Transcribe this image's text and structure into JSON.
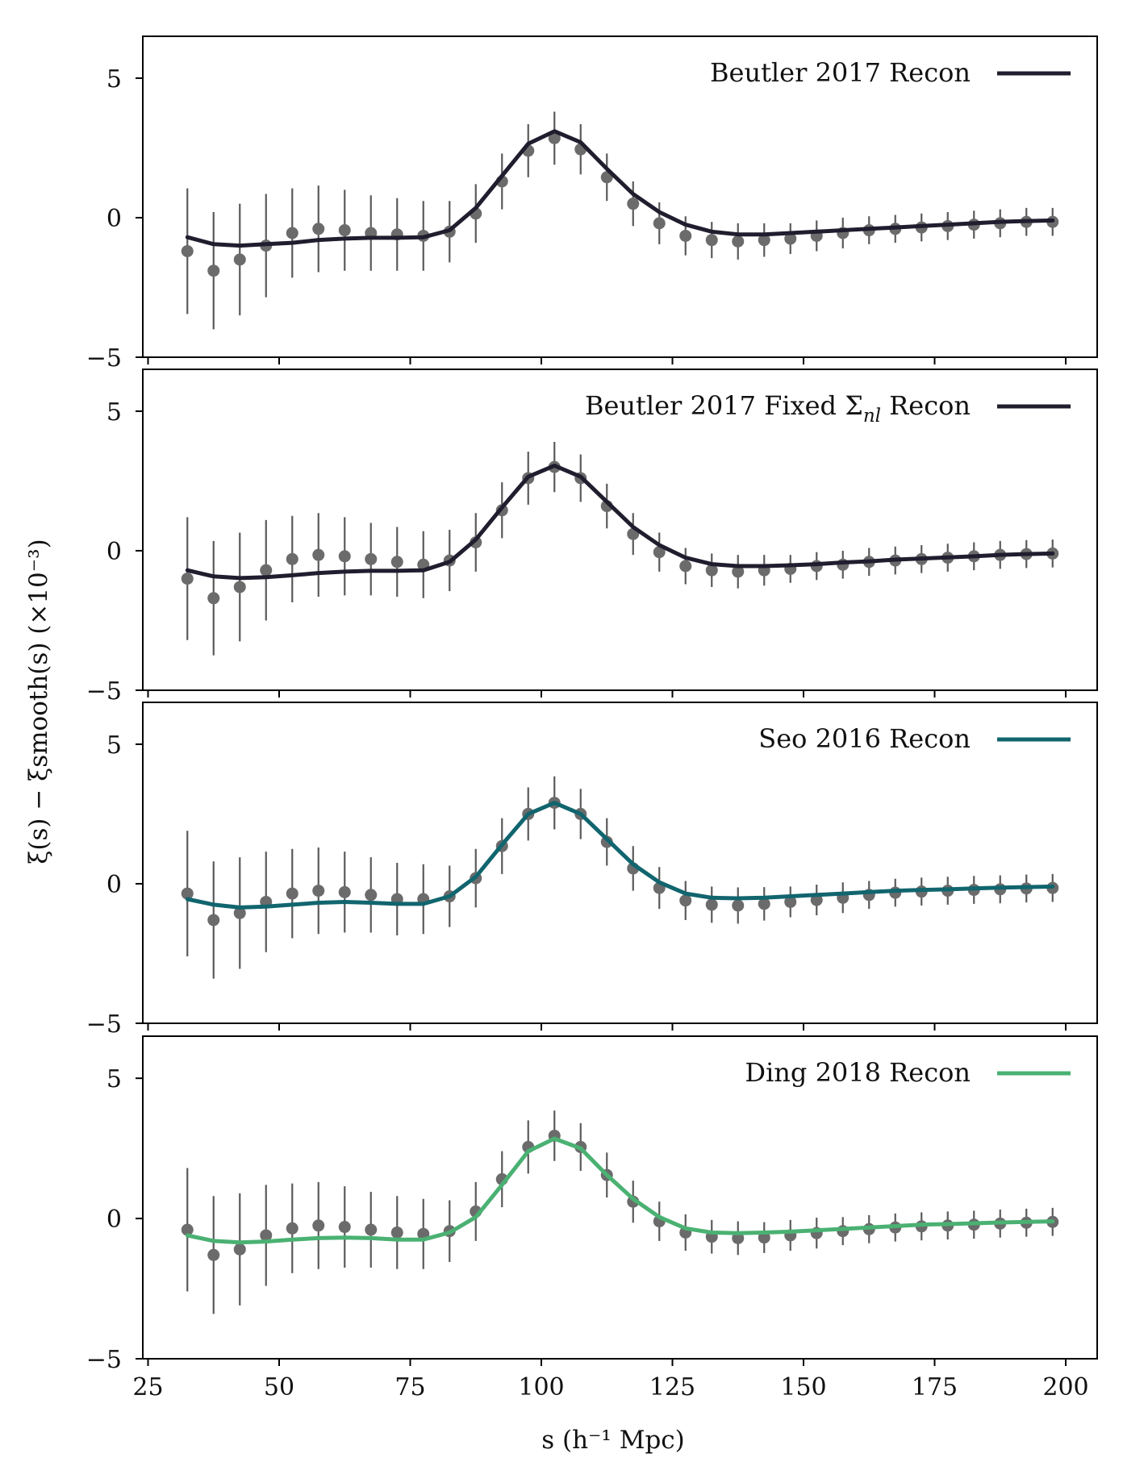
{
  "figure": {
    "ylabel": "ξ(s) − ξsmooth(s) (×10⁻³)",
    "xlabel": "s (h⁻¹ Mpc)"
  },
  "chart_data": [
    {
      "type": "line",
      "legend": "Beutler 2017 Recon",
      "line_color": "#1f1d2e",
      "x": [
        32.5,
        37.5,
        42.5,
        47.5,
        52.5,
        57.5,
        62.5,
        67.5,
        72.5,
        77.5,
        82.5,
        87.5,
        92.5,
        97.5,
        102.5,
        107.5,
        112.5,
        117.5,
        122.5,
        127.5,
        132.5,
        137.5,
        142.5,
        147.5,
        152.5,
        157.5,
        162.5,
        167.5,
        172.5,
        177.5,
        182.5,
        187.5,
        192.5,
        197.5
      ],
      "model": [
        -0.7,
        -0.95,
        -1.0,
        -0.95,
        -0.9,
        -0.8,
        -0.75,
        -0.72,
        -0.72,
        -0.7,
        -0.45,
        0.35,
        1.5,
        2.65,
        3.1,
        2.7,
        1.75,
        0.85,
        0.2,
        -0.25,
        -0.5,
        -0.6,
        -0.6,
        -0.55,
        -0.5,
        -0.45,
        -0.4,
        -0.35,
        -0.3,
        -0.25,
        -0.2,
        -0.15,
        -0.12,
        -0.1
      ],
      "data": [
        -1.2,
        -1.9,
        -1.5,
        -1.0,
        -0.55,
        -0.4,
        -0.45,
        -0.55,
        -0.6,
        -0.65,
        -0.5,
        0.15,
        1.3,
        2.4,
        2.85,
        2.45,
        1.45,
        0.5,
        -0.2,
        -0.65,
        -0.8,
        -0.85,
        -0.8,
        -0.75,
        -0.65,
        -0.55,
        -0.45,
        -0.4,
        -0.35,
        -0.3,
        -0.25,
        -0.2,
        -0.15,
        -0.15
      ],
      "err": [
        2.25,
        2.1,
        2.0,
        1.85,
        1.6,
        1.55,
        1.45,
        1.35,
        1.3,
        1.25,
        1.1,
        1.05,
        1.0,
        0.95,
        0.95,
        0.9,
        0.85,
        0.8,
        0.75,
        0.7,
        0.65,
        0.65,
        0.6,
        0.55,
        0.55,
        0.55,
        0.5,
        0.5,
        0.5,
        0.5,
        0.5,
        0.5,
        0.5,
        0.5
      ],
      "xlim": [
        24,
        206
      ],
      "ylim": [
        -5,
        6.5
      ],
      "yticks": [
        -5,
        0,
        5
      ],
      "xticks": [
        25,
        50,
        75,
        100,
        125,
        150,
        175,
        200
      ]
    },
    {
      "type": "line",
      "legend_prefix": "Beutler 2017 Fixed Σ",
      "legend_sub": "nl",
      "legend_suffix": " Recon",
      "line_color": "#1f1d2e",
      "x": [
        32.5,
        37.5,
        42.5,
        47.5,
        52.5,
        57.5,
        62.5,
        67.5,
        72.5,
        77.5,
        82.5,
        87.5,
        92.5,
        97.5,
        102.5,
        107.5,
        112.5,
        117.5,
        122.5,
        127.5,
        132.5,
        137.5,
        142.5,
        147.5,
        152.5,
        157.5,
        162.5,
        167.5,
        172.5,
        177.5,
        182.5,
        187.5,
        192.5,
        197.5
      ],
      "model": [
        -0.7,
        -0.92,
        -0.98,
        -0.95,
        -0.88,
        -0.8,
        -0.75,
        -0.72,
        -0.72,
        -0.7,
        -0.4,
        0.4,
        1.55,
        2.65,
        3.05,
        2.65,
        1.75,
        0.85,
        0.2,
        -0.25,
        -0.48,
        -0.55,
        -0.55,
        -0.52,
        -0.48,
        -0.42,
        -0.38,
        -0.32,
        -0.28,
        -0.24,
        -0.2,
        -0.15,
        -0.12,
        -0.1
      ],
      "data": [
        -1.0,
        -1.7,
        -1.3,
        -0.7,
        -0.3,
        -0.15,
        -0.2,
        -0.3,
        -0.4,
        -0.5,
        -0.35,
        0.3,
        1.45,
        2.6,
        3.0,
        2.6,
        1.6,
        0.6,
        -0.05,
        -0.55,
        -0.7,
        -0.75,
        -0.7,
        -0.65,
        -0.55,
        -0.5,
        -0.4,
        -0.35,
        -0.3,
        -0.25,
        -0.2,
        -0.15,
        -0.12,
        -0.1
      ],
      "err": [
        2.2,
        2.05,
        1.95,
        1.8,
        1.55,
        1.5,
        1.4,
        1.3,
        1.25,
        1.2,
        1.1,
        1.05,
        1.0,
        0.95,
        0.9,
        0.85,
        0.8,
        0.75,
        0.7,
        0.65,
        0.6,
        0.6,
        0.55,
        0.5,
        0.5,
        0.5,
        0.5,
        0.5,
        0.5,
        0.5,
        0.5,
        0.5,
        0.5,
        0.5
      ],
      "xlim": [
        24,
        206
      ],
      "ylim": [
        -5,
        6.5
      ],
      "yticks": [
        -5,
        0,
        5
      ],
      "xticks": [
        25,
        50,
        75,
        100,
        125,
        150,
        175,
        200
      ]
    },
    {
      "type": "line",
      "legend": "Seo 2016 Recon",
      "line_color": "#11656e",
      "x": [
        32.5,
        37.5,
        42.5,
        47.5,
        52.5,
        57.5,
        62.5,
        67.5,
        72.5,
        77.5,
        82.5,
        87.5,
        92.5,
        97.5,
        102.5,
        107.5,
        112.5,
        117.5,
        122.5,
        127.5,
        132.5,
        137.5,
        142.5,
        147.5,
        152.5,
        157.5,
        162.5,
        167.5,
        172.5,
        177.5,
        182.5,
        187.5,
        192.5,
        197.5
      ],
      "model": [
        -0.55,
        -0.75,
        -0.85,
        -0.82,
        -0.75,
        -0.68,
        -0.65,
        -0.68,
        -0.72,
        -0.72,
        -0.45,
        0.25,
        1.4,
        2.5,
        2.9,
        2.5,
        1.6,
        0.7,
        0.05,
        -0.35,
        -0.5,
        -0.52,
        -0.5,
        -0.45,
        -0.4,
        -0.35,
        -0.3,
        -0.25,
        -0.22,
        -0.2,
        -0.17,
        -0.14,
        -0.12,
        -0.1
      ],
      "data": [
        -0.35,
        -1.3,
        -1.05,
        -0.65,
        -0.35,
        -0.25,
        -0.3,
        -0.4,
        -0.55,
        -0.55,
        -0.45,
        0.2,
        1.35,
        2.5,
        2.9,
        2.5,
        1.5,
        0.55,
        -0.15,
        -0.6,
        -0.75,
        -0.78,
        -0.72,
        -0.65,
        -0.58,
        -0.5,
        -0.4,
        -0.32,
        -0.28,
        -0.25,
        -0.22,
        -0.2,
        -0.17,
        -0.15
      ],
      "err": [
        2.25,
        2.1,
        2.0,
        1.8,
        1.6,
        1.55,
        1.45,
        1.35,
        1.3,
        1.25,
        1.1,
        1.05,
        1.0,
        0.95,
        0.95,
        0.9,
        0.85,
        0.8,
        0.75,
        0.7,
        0.65,
        0.65,
        0.6,
        0.55,
        0.55,
        0.55,
        0.5,
        0.5,
        0.5,
        0.5,
        0.5,
        0.5,
        0.5,
        0.5
      ],
      "xlim": [
        24,
        206
      ],
      "ylim": [
        -5,
        6.5
      ],
      "yticks": [
        -5,
        0,
        5
      ],
      "xticks": [
        25,
        50,
        75,
        100,
        125,
        150,
        175,
        200
      ]
    },
    {
      "type": "line",
      "legend": "Ding 2018 Recon",
      "line_color": "#4ab172",
      "x": [
        32.5,
        37.5,
        42.5,
        47.5,
        52.5,
        57.5,
        62.5,
        67.5,
        72.5,
        77.5,
        82.5,
        87.5,
        92.5,
        97.5,
        102.5,
        107.5,
        112.5,
        117.5,
        122.5,
        127.5,
        132.5,
        137.5,
        142.5,
        147.5,
        152.5,
        157.5,
        162.5,
        167.5,
        172.5,
        177.5,
        182.5,
        187.5,
        192.5,
        197.5
      ],
      "model": [
        -0.6,
        -0.8,
        -0.85,
        -0.82,
        -0.75,
        -0.7,
        -0.68,
        -0.7,
        -0.75,
        -0.75,
        -0.5,
        0.05,
        1.2,
        2.4,
        2.85,
        2.5,
        1.55,
        0.7,
        0.05,
        -0.35,
        -0.5,
        -0.52,
        -0.5,
        -0.47,
        -0.42,
        -0.37,
        -0.32,
        -0.27,
        -0.22,
        -0.2,
        -0.17,
        -0.14,
        -0.12,
        -0.1
      ],
      "data": [
        -0.4,
        -1.3,
        -1.1,
        -0.6,
        -0.35,
        -0.25,
        -0.3,
        -0.4,
        -0.5,
        -0.55,
        -0.45,
        0.25,
        1.4,
        2.55,
        2.95,
        2.55,
        1.55,
        0.6,
        -0.1,
        -0.5,
        -0.65,
        -0.7,
        -0.68,
        -0.6,
        -0.52,
        -0.45,
        -0.38,
        -0.32,
        -0.28,
        -0.25,
        -0.22,
        -0.18,
        -0.15,
        -0.12
      ],
      "err": [
        2.2,
        2.1,
        2.0,
        1.8,
        1.6,
        1.55,
        1.45,
        1.35,
        1.3,
        1.25,
        1.1,
        1.05,
        1.0,
        0.95,
        0.9,
        0.85,
        0.8,
        0.75,
        0.7,
        0.65,
        0.6,
        0.6,
        0.55,
        0.55,
        0.55,
        0.5,
        0.5,
        0.5,
        0.5,
        0.5,
        0.5,
        0.5,
        0.5,
        0.5
      ],
      "xlim": [
        24,
        206
      ],
      "ylim": [
        -5,
        6.5
      ],
      "yticks": [
        -5,
        0,
        5
      ],
      "xticks": [
        25,
        50,
        75,
        100,
        125,
        150,
        175,
        200
      ]
    }
  ],
  "style": {
    "point_color": "#6b6b6b",
    "errorbar_color": "#5a5a5a",
    "axis_color": "#000000"
  }
}
